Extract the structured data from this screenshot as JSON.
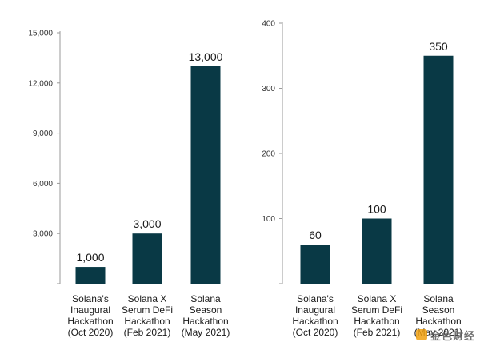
{
  "colors": {
    "bar": "#093945",
    "axis": "#9a9a9a",
    "text": "#1a1a1a"
  },
  "watermark": {
    "text": "金色财经",
    "icon": "brand-logo-icon"
  },
  "chart_data": [
    {
      "type": "bar",
      "title": "",
      "xlabel": "",
      "ylabel": "",
      "ylim": [
        0,
        15000
      ],
      "yticks": [
        0,
        3000,
        6000,
        9000,
        12000,
        15000
      ],
      "ytick_labels": [
        "-",
        "3,000",
        "6,000",
        "9,000",
        "12,000",
        "15,000"
      ],
      "categories": [
        [
          "Solana's",
          "Inaugural",
          "Hackathon",
          "(Oct 2020)"
        ],
        [
          "Solana X",
          "Serum DeFi",
          "Hackathon",
          "(Feb 2021)"
        ],
        [
          "Solana",
          "Season",
          "Hackathon",
          "(May 2021)"
        ]
      ],
      "values": [
        1000,
        3000,
        13000
      ],
      "value_labels": [
        "1,000",
        "3,000",
        "13,000"
      ],
      "grid": false
    },
    {
      "type": "bar",
      "title": "",
      "xlabel": "",
      "ylabel": "",
      "ylim": [
        0,
        400
      ],
      "yticks": [
        0,
        100,
        200,
        300,
        400
      ],
      "ytick_labels": [
        "-",
        "100",
        "200",
        "300",
        "400"
      ],
      "categories": [
        [
          "Solana's",
          "Inaugural",
          "Hackathon",
          "(Oct 2020)"
        ],
        [
          "Solana X",
          "Serum DeFi",
          "Hackathon",
          "(Feb 2021)"
        ],
        [
          "Solana",
          "Season",
          "Hackathon",
          "(May 2021)"
        ]
      ],
      "values": [
        60,
        100,
        350
      ],
      "value_labels": [
        "60",
        "100",
        "350"
      ],
      "grid": false
    }
  ]
}
